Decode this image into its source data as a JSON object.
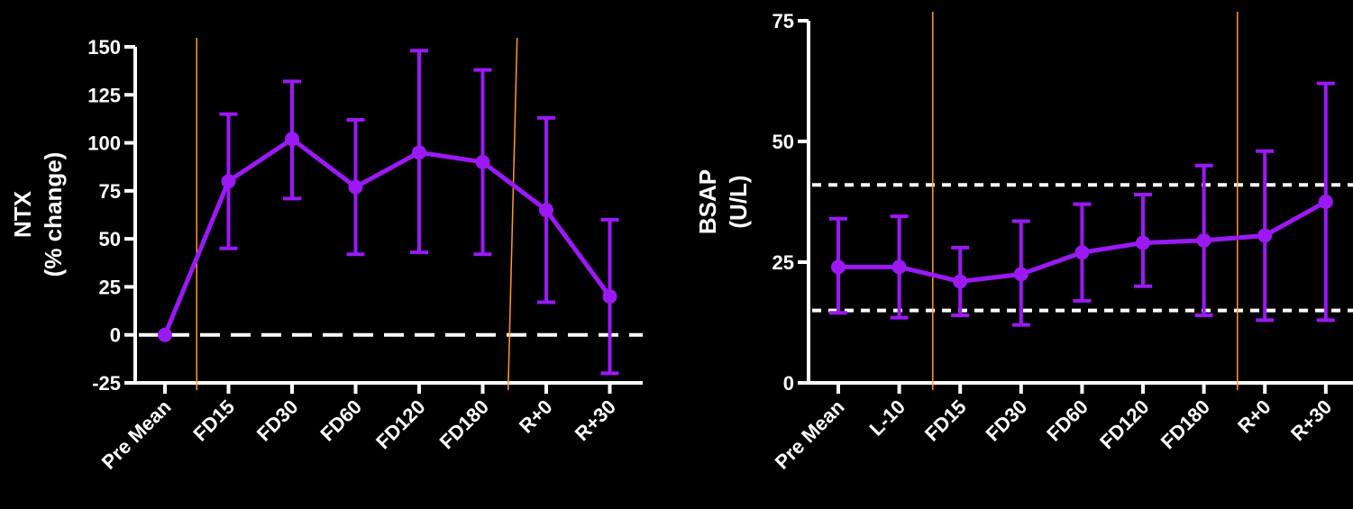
{
  "colors": {
    "background": "#000000",
    "axis": "#ffffff",
    "series": "#9b19f5",
    "marker_line": "#ff9a2e",
    "reference": "#ffffff"
  },
  "chart_data": [
    {
      "type": "line",
      "ylabel": [
        "NTX",
        "(% change)"
      ],
      "categories": [
        "Pre Mean",
        "FD15",
        "FD30",
        "FD60",
        "FD120",
        "FD180",
        "R+0",
        "R+30"
      ],
      "yticks": [
        "-25",
        "0",
        "25",
        "50",
        "75",
        "100",
        "125",
        "150"
      ],
      "ylim": [
        -25,
        150
      ],
      "series": [
        {
          "values": [
            0,
            80,
            102,
            77,
            95,
            90,
            65,
            20
          ],
          "lower": [
            0,
            45,
            71,
            42,
            43,
            42,
            17,
            -20
          ],
          "upper": [
            0,
            115,
            132,
            112,
            148,
            138,
            113,
            60
          ]
        }
      ],
      "reference_lines": [
        0
      ],
      "vertical_markers": [
        0.5,
        5.4
      ],
      "grid": false,
      "legend": "none"
    },
    {
      "type": "line",
      "ylabel": [
        "BSAP",
        "(U/L)"
      ],
      "categories": [
        "Pre Mean",
        "L-10",
        "FD15",
        "FD30",
        "FD60",
        "FD120",
        "FD180",
        "R+0",
        "R+30"
      ],
      "yticks": [
        "0",
        "25",
        "50",
        "75"
      ],
      "ylim": [
        0,
        75
      ],
      "series": [
        {
          "values": [
            24,
            24,
            21,
            22.5,
            27,
            29,
            29.5,
            30.5,
            37.5
          ],
          "lower": [
            14.5,
            13.5,
            14,
            12,
            17,
            20,
            14,
            13,
            13
          ],
          "upper": [
            34,
            34.5,
            28,
            33.5,
            37,
            39,
            45,
            48,
            62
          ]
        }
      ],
      "reference_lines": [
        15,
        41
      ],
      "vertical_markers": [
        1.55,
        6.55
      ],
      "grid": false,
      "legend": "none"
    }
  ]
}
